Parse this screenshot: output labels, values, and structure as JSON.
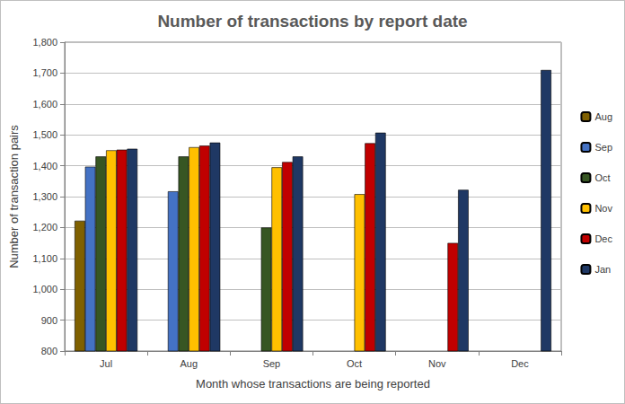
{
  "chart_data": {
    "type": "bar",
    "title": "Number of transactions by report date",
    "x_label": "Month whose transactions are being reported",
    "y_label": "Number of transaction pairs",
    "categories": [
      "Jul",
      "Aug",
      "Sep",
      "Oct",
      "Nov",
      "Dec"
    ],
    "series": [
      {
        "name": "Aug",
        "color": "#7f6000",
        "values": [
          1222,
          null,
          null,
          null,
          null,
          null
        ]
      },
      {
        "name": "Sep",
        "color": "#4472c4",
        "values": [
          1397,
          1317,
          null,
          null,
          null,
          null
        ]
      },
      {
        "name": "Oct",
        "color": "#375623",
        "values": [
          1430,
          1430,
          1200,
          null,
          null,
          null
        ]
      },
      {
        "name": "Nov",
        "color": "#ffc000",
        "values": [
          1450,
          1460,
          1395,
          1308,
          null,
          null
        ]
      },
      {
        "name": "Dec",
        "color": "#c00000",
        "values": [
          1452,
          1465,
          1412,
          1473,
          1150,
          null
        ]
      },
      {
        "name": "Jan",
        "color": "#1f3864",
        "values": [
          1455,
          1475,
          1430,
          1507,
          1322,
          1710
        ]
      }
    ],
    "ylim": [
      800,
      1800
    ],
    "yticks": [
      800,
      900,
      {
        "value": 1000,
        "label": "1,000"
      },
      {
        "value": 1100,
        "label": "1,100"
      },
      {
        "value": 1200,
        "label": "1,200"
      },
      {
        "value": 1300,
        "label": "1,300"
      },
      {
        "value": 1400,
        "label": "1,400"
      },
      {
        "value": 1500,
        "label": "1,500"
      },
      {
        "value": 1600,
        "label": "1,600"
      },
      {
        "value": 1700,
        "label": "1,700"
      },
      {
        "value": 1800,
        "label": "1,800"
      }
    ],
    "grid": true,
    "legend": "right"
  }
}
